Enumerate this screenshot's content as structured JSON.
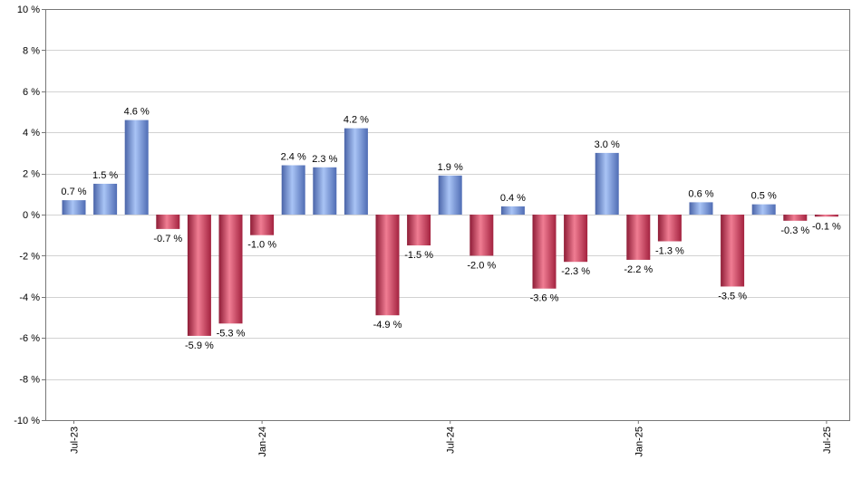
{
  "chart_data": {
    "type": "bar",
    "title": "",
    "xlabel": "",
    "ylabel": "",
    "ylim": [
      -10,
      10
    ],
    "y_ticks": [
      10,
      8,
      6,
      4,
      2,
      0,
      -2,
      -4,
      -6,
      -8,
      -10
    ],
    "y_tick_labels": [
      "10 %",
      "8 %",
      "6 %",
      "4 %",
      "2 %",
      "0 %",
      "-2 %",
      "-4 %",
      "-6 %",
      "-8 %",
      "-10 %"
    ],
    "x_tick_labels": [
      {
        "label": "Jul-23",
        "index": 0
      },
      {
        "label": "Jan-24",
        "index": 6
      },
      {
        "label": "Jul-24",
        "index": 12
      },
      {
        "label": "Jan-25",
        "index": 18
      },
      {
        "label": "Jul-25",
        "index": 24
      }
    ],
    "grid": true,
    "positive_color": "#6f8fd6",
    "negative_color": "#c8304f",
    "values": [
      0.7,
      1.5,
      4.6,
      -0.7,
      -5.9,
      -5.3,
      -1.0,
      2.4,
      2.3,
      4.2,
      -4.9,
      -1.5,
      1.9,
      -2.0,
      0.4,
      -3.6,
      -2.3,
      3.0,
      -2.2,
      -1.3,
      0.6,
      -3.5,
      0.5,
      -0.3,
      -0.1
    ],
    "data_labels": [
      "0.7 %",
      "1.5 %",
      "4.6 %",
      "-0.7 %",
      "-5.9 %",
      "-5.3 %",
      "-1.0 %",
      "2.4 %",
      "2.3 %",
      "4.2 %",
      "-4.9 %",
      "-1.5 %",
      "1.9 %",
      "-2.0 %",
      "0.4 %",
      "-3.6 %",
      "-2.3 %",
      "3.0 %",
      "-2.2 %",
      "-1.3 %",
      "0.6 %",
      "-3.5 %",
      "0.5 %",
      "-0.3 %",
      "-0.1 %"
    ]
  }
}
